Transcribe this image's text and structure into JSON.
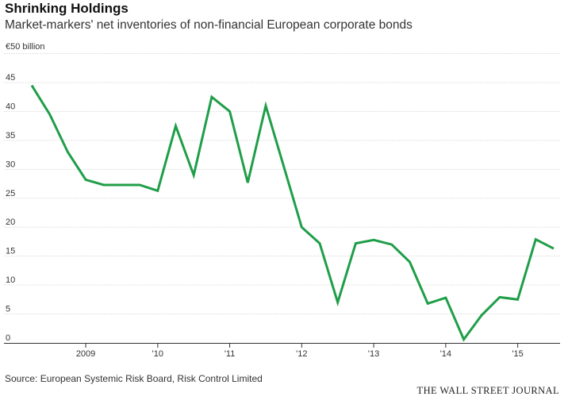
{
  "header": {
    "title": "Shrinking Holdings",
    "subtitle": "Market-markers' net inventories of non-financial European corporate bonds"
  },
  "footer": {
    "source": "Source: European Systemic Risk Board, Risk Control Limited",
    "brand": "THE WALL STREET JOURNAL"
  },
  "chart_data": {
    "type": "line",
    "title": "Shrinking Holdings",
    "subtitle": "Market-markers' net inventories of non-financial European corporate bonds",
    "unit_label": "€50 billion",
    "xlabel": "",
    "ylabel": "",
    "x_tick_labels": [
      "2009",
      "'10",
      "'11",
      "'12",
      "'13",
      "'14",
      "'15"
    ],
    "x_tick_years": [
      2009,
      2010,
      2011,
      2012,
      2013,
      2014,
      2015
    ],
    "xlim": [
      2008.2,
      2015.55
    ],
    "ylim": [
      0,
      50
    ],
    "y_ticks": [
      0,
      5,
      10,
      15,
      20,
      25,
      30,
      35,
      40,
      45
    ],
    "grid": true,
    "legend": "none",
    "line_color": "#1f9e48",
    "series": [
      {
        "x": [
          2008.25,
          2008.5,
          2008.75,
          2009.0,
          2009.25,
          2009.5,
          2009.75,
          2010.0,
          2010.25,
          2010.5,
          2010.75,
          2011.0,
          2011.25,
          2011.5,
          2011.75,
          2012.0,
          2012.25,
          2012.5,
          2012.75,
          2013.0,
          2013.25,
          2013.5,
          2013.75,
          2014.0,
          2014.25,
          2014.5,
          2014.75,
          2015.0,
          2015.25,
          2015.5
        ],
        "values": [
          44.5,
          39.5,
          33,
          28.2,
          27.3,
          27.3,
          27.3,
          26.3,
          37.5,
          29,
          42.5,
          40,
          27.7,
          41,
          30.5,
          20,
          17.2,
          7,
          17.2,
          17.8,
          17,
          14,
          6.8,
          7.8,
          0.6,
          4.8,
          7.9,
          7.5,
          17.9,
          16.3
        ]
      }
    ]
  }
}
